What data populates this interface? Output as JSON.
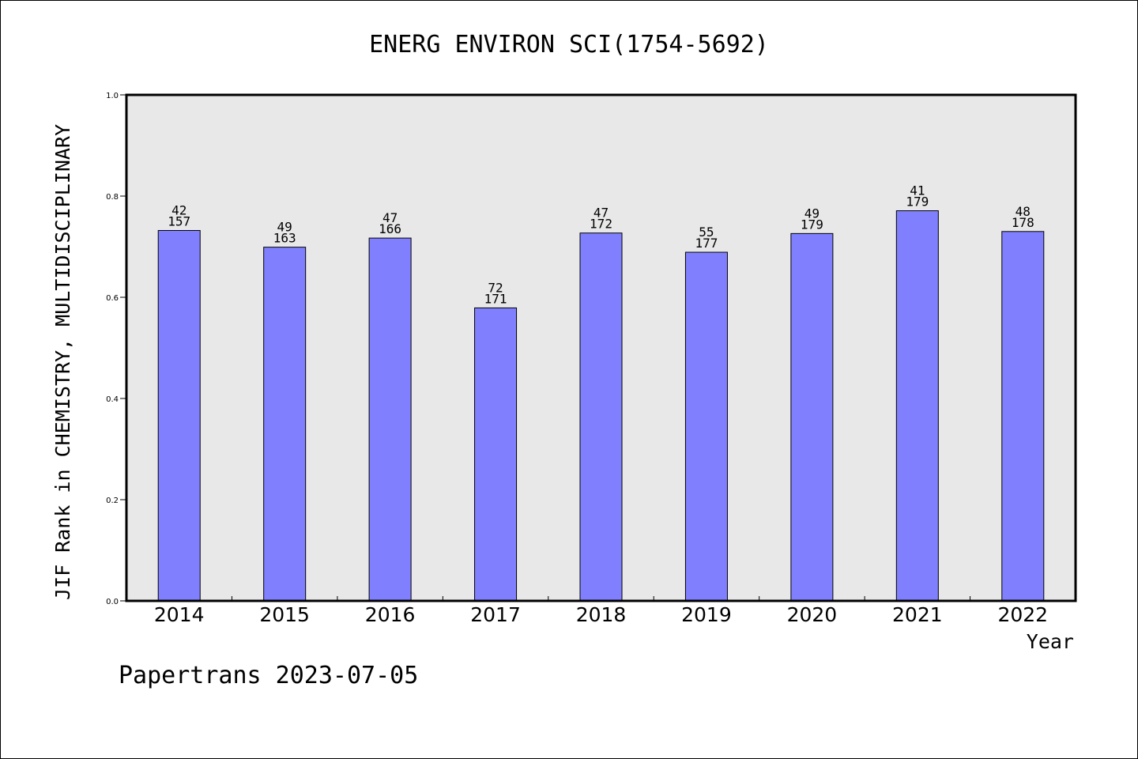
{
  "chart_data": {
    "type": "bar",
    "title": "ENERG ENVIRON SCI(1754-5692)",
    "xlabel": "Year",
    "ylabel": "JIF Rank in CHEMISTRY, MULTIDISCIPLINARY",
    "ylim": [
      0.0,
      1.0
    ],
    "yticks": [
      "0.0",
      "0.2",
      "0.4",
      "0.6",
      "0.8",
      "1.0"
    ],
    "grid": false,
    "categories": [
      "2014",
      "2015",
      "2016",
      "2017",
      "2018",
      "2019",
      "2020",
      "2021",
      "2022"
    ],
    "values": [
      0.732,
      0.699,
      0.717,
      0.579,
      0.727,
      0.689,
      0.726,
      0.771,
      0.73
    ],
    "rank_labels": [
      "42",
      "49",
      "47",
      "72",
      "47",
      "55",
      "49",
      "41",
      "48"
    ],
    "total_labels": [
      "157",
      "163",
      "166",
      "171",
      "172",
      "177",
      "179",
      "179",
      "178"
    ],
    "colors": {
      "bar": "#8080ff",
      "plot_bg": "#e8e8e8"
    }
  },
  "footer": {
    "text": "Papertrans 2023-07-05"
  }
}
